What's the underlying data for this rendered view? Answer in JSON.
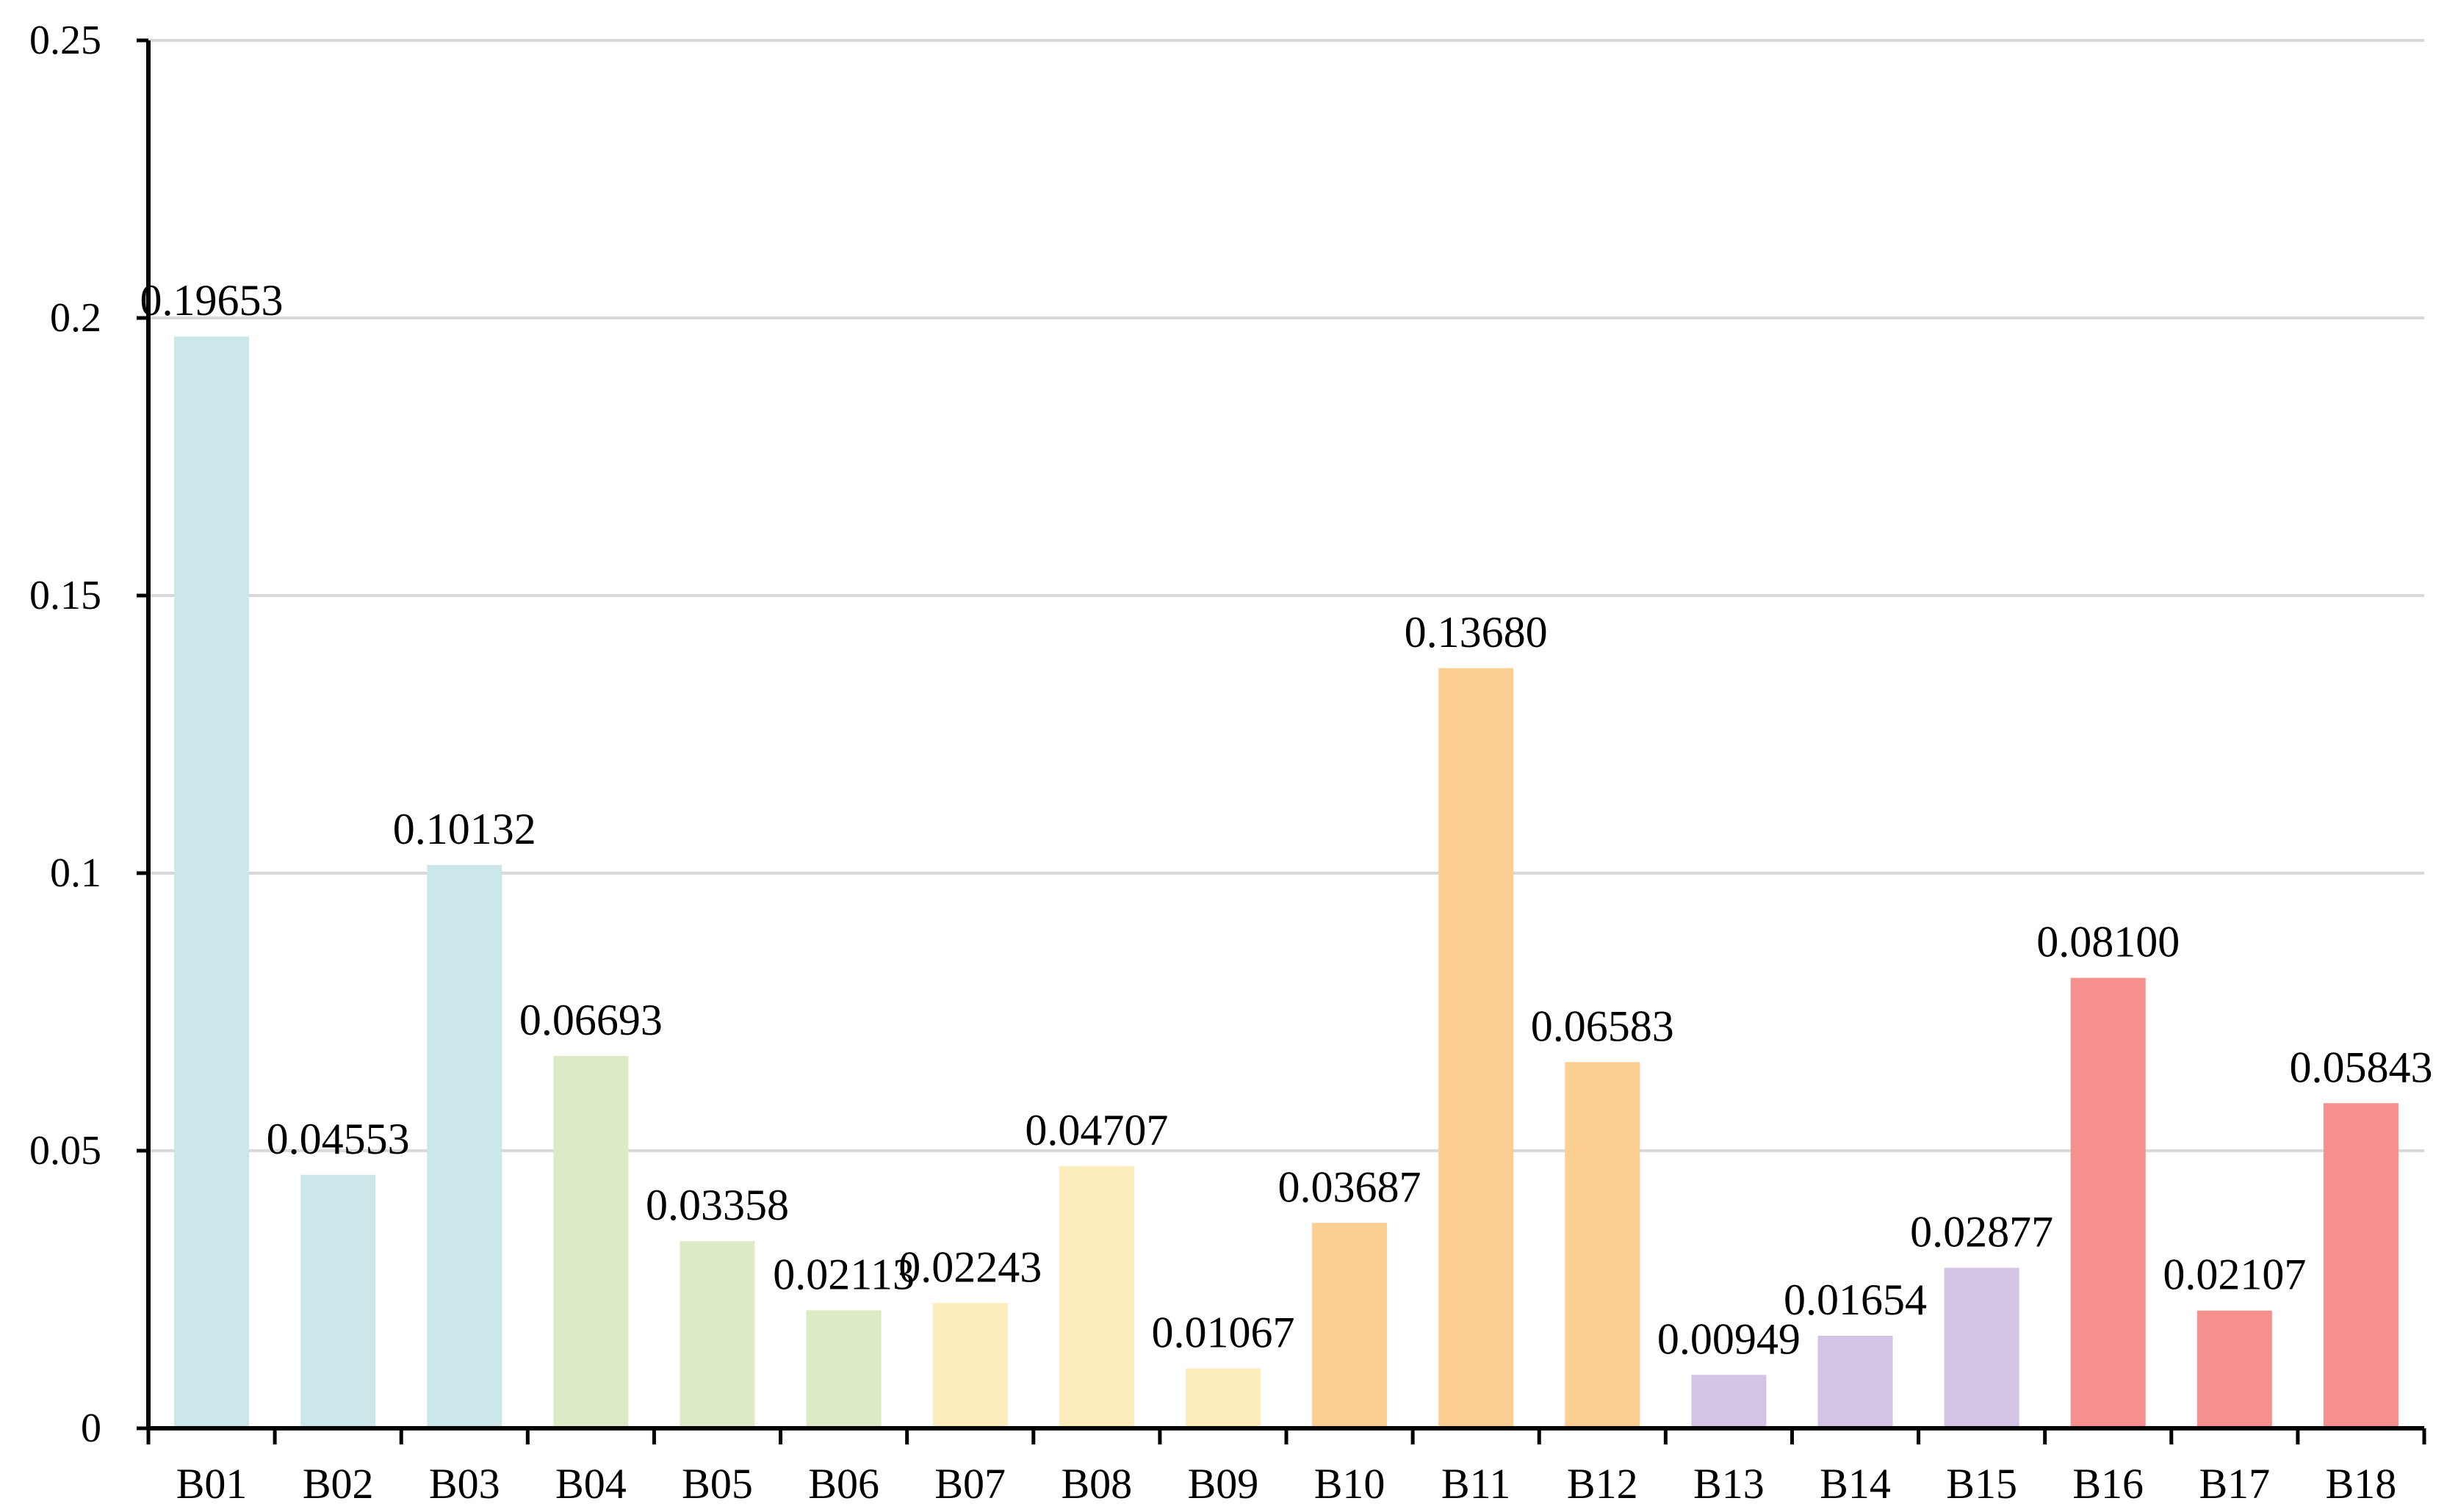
{
  "chart_data": {
    "type": "bar",
    "title": "",
    "xlabel": "",
    "ylabel": "",
    "ylim": [
      0,
      0.25
    ],
    "yticks": [
      {
        "value": 0,
        "label": "0"
      },
      {
        "value": 0.05,
        "label": "0.05"
      },
      {
        "value": 0.1,
        "label": "0.1"
      },
      {
        "value": 0.15,
        "label": "0.15"
      },
      {
        "value": 0.2,
        "label": "0.2"
      },
      {
        "value": 0.25,
        "label": "0.25"
      }
    ],
    "grid": true,
    "categories": [
      "B01",
      "B02",
      "B03",
      "B04",
      "B05",
      "B06",
      "B07",
      "B08",
      "B09",
      "B10",
      "B11",
      "B12",
      "B13",
      "B14",
      "B15",
      "B16",
      "B17",
      "B18"
    ],
    "values": [
      0.19653,
      0.04553,
      0.10132,
      0.06693,
      0.03358,
      0.02113,
      0.02243,
      0.04707,
      0.01067,
      0.03687,
      0.1368,
      0.06583,
      0.00949,
      0.01654,
      0.02877,
      0.081,
      0.02107,
      0.05843
    ],
    "data_labels": [
      "0.19653",
      "0.04553",
      "0.10132",
      "0.06693",
      "0.03358",
      "0.02113",
      "0.02243",
      "0.04707",
      "0.01067",
      "0.03687",
      "0.13680",
      "0.06583",
      "0.00949",
      "0.01654",
      "0.02877",
      "0.08100",
      "0.02107",
      "0.05843"
    ],
    "colors": [
      "#cce7e9",
      "#cce7e9",
      "#cce7e9",
      "#dcebc6",
      "#dcebc6",
      "#dcebc6",
      "#fdedbc",
      "#fdedbc",
      "#fdedbc",
      "#fdcf92",
      "#fdcf92",
      "#fdcf92",
      "#d3c3e5",
      "#d3c3e5",
      "#d3c3e5",
      "#f5908d",
      "#f5908d",
      "#f5908d"
    ],
    "grid_color": "#d9d9d9",
    "axis_color": "#000000"
  }
}
